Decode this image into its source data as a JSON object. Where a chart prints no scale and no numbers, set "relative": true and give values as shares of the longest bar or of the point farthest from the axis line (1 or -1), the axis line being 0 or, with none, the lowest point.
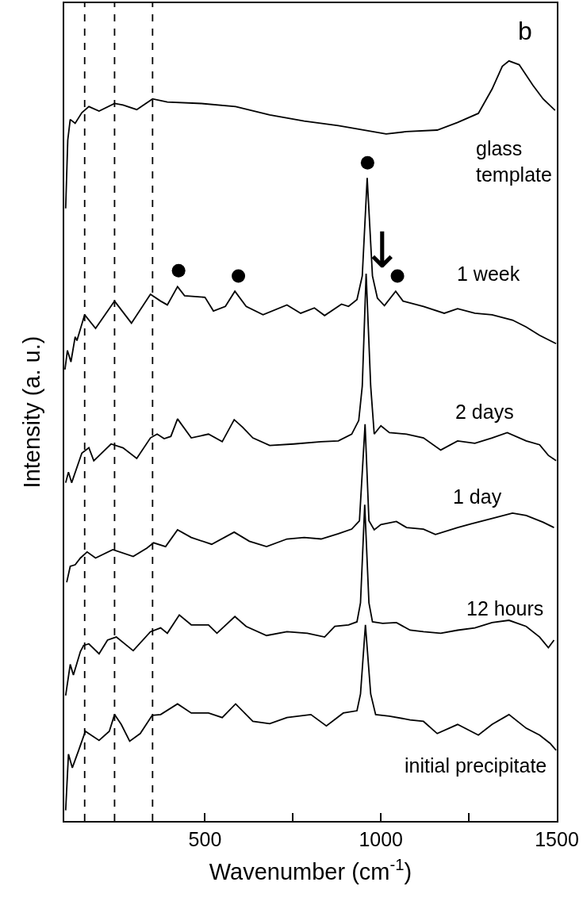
{
  "chart_data": {
    "type": "line",
    "relative": true,
    "xlabel": "Wavenumber (cm$^{-1}$)",
    "ylabel": "Intensity (a. u.)",
    "xlim": [
      100,
      1500
    ],
    "xticks": [
      500,
      {
        "value": 750,
        "label": null
      },
      1000,
      {
        "value": 1250,
        "label": null
      },
      1500
    ],
    "tick_labels": "x",
    "legend": false,
    "line_style": "solid",
    "ref_lines": [
      {
        "axis": "x",
        "value": 158,
        "color": "#000000",
        "line_style": "dashed"
      },
      {
        "axis": "x",
        "value": 243,
        "color": "#000000",
        "line_style": "dashed"
      },
      {
        "axis": "x",
        "value": 351,
        "color": "#000000",
        "line_style": "dashed"
      }
    ],
    "annotations": [
      "b",
      "↓"
    ],
    "series": [
      {
        "name": "glass\ntemplate",
        "color": "#000000",
        "x": [
          104,
          110,
          117,
          131,
          150,
          170,
          199,
          243,
          267,
          306,
          351,
          393,
          490,
          587,
          684,
          782,
          879,
          1015,
          1073,
          1160,
          1218,
          1277,
          1316,
          1345,
          1364,
          1393,
          1432,
          1461,
          1495
        ],
        "values": [
          0.806,
          0.896,
          0.923,
          0.918,
          0.932,
          0.94,
          0.934,
          0.944,
          0.942,
          0.936,
          0.95,
          0.946,
          0.944,
          0.94,
          0.929,
          0.921,
          0.915,
          0.904,
          0.907,
          0.909,
          0.919,
          0.931,
          0.963,
          0.993,
          1.0,
          0.995,
          0.968,
          0.95,
          0.935
        ]
      },
      {
        "name": "1 week",
        "color": "#000000",
        "x": [
          102,
          109,
          119,
          131,
          136,
          158,
          189,
          243,
          291,
          345,
          374,
          393,
          422,
          442,
          500,
          524,
          558,
          585,
          617,
          665,
          733,
          772,
          811,
          840,
          888,
          908,
          932,
          947,
          961,
          976,
          990,
          1010,
          1042,
          1063,
          1121,
          1180,
          1218,
          1267,
          1316,
          1374,
          1413,
          1451,
          1498
        ],
        "values": [
          0.594,
          0.619,
          0.604,
          0.637,
          0.632,
          0.666,
          0.648,
          0.684,
          0.655,
          0.693,
          0.684,
          0.679,
          0.703,
          0.691,
          0.689,
          0.671,
          0.677,
          0.697,
          0.677,
          0.666,
          0.679,
          0.668,
          0.675,
          0.665,
          0.68,
          0.677,
          0.686,
          0.717,
          0.846,
          0.717,
          0.688,
          0.678,
          0.697,
          0.684,
          0.677,
          0.668,
          0.674,
          0.668,
          0.666,
          0.659,
          0.65,
          0.639,
          0.628
        ]
      },
      {
        "name": "2 days",
        "color": "#000000",
        "x": [
          104,
          112,
          121,
          150,
          170,
          184,
          233,
          267,
          306,
          345,
          364,
          384,
          403,
          422,
          461,
          510,
          549,
          583,
          607,
          636,
          684,
          752,
          830,
          879,
          917,
          937,
          947,
          958,
          971,
          981,
          1000,
          1024,
          1073,
          1121,
          1170,
          1218,
          1267,
          1316,
          1359,
          1413,
          1451,
          1476,
          1498
        ],
        "values": [
          0.445,
          0.459,
          0.445,
          0.484,
          0.491,
          0.474,
          0.496,
          0.491,
          0.477,
          0.504,
          0.509,
          0.503,
          0.506,
          0.529,
          0.504,
          0.509,
          0.499,
          0.528,
          0.518,
          0.504,
          0.494,
          0.496,
          0.499,
          0.5,
          0.509,
          0.527,
          0.572,
          0.72,
          0.572,
          0.509,
          0.52,
          0.511,
          0.509,
          0.504,
          0.488,
          0.5,
          0.497,
          0.504,
          0.511,
          0.5,
          0.495,
          0.481,
          0.474
        ]
      },
      {
        "name": "1 day",
        "color": "#000000",
        "x": [
          107,
          117,
          131,
          146,
          165,
          189,
          238,
          296,
          335,
          354,
          388,
          422,
          461,
          519,
          583,
          626,
          675,
          733,
          782,
          830,
          879,
          917,
          939,
          955,
          966,
          981,
          1000,
          1044,
          1073,
          1121,
          1155,
          1218,
          1257,
          1316,
          1374,
          1413,
          1461,
          1492
        ],
        "values": [
          0.314,
          0.335,
          0.337,
          0.346,
          0.354,
          0.346,
          0.357,
          0.348,
          0.359,
          0.366,
          0.361,
          0.383,
          0.373,
          0.364,
          0.38,
          0.368,
          0.361,
          0.371,
          0.373,
          0.371,
          0.378,
          0.384,
          0.395,
          0.522,
          0.395,
          0.383,
          0.39,
          0.394,
          0.386,
          0.384,
          0.377,
          0.386,
          0.391,
          0.398,
          0.405,
          0.402,
          0.393,
          0.386
        ]
      },
      {
        "name": "12 hours",
        "color": "#000000",
        "x": [
          104,
          117,
          126,
          146,
          155,
          170,
          199,
          223,
          248,
          296,
          345,
          374,
          393,
          427,
          461,
          510,
          534,
          585,
          617,
          675,
          733,
          791,
          840,
          869,
          908,
          932,
          942,
          954,
          966,
          976,
          1005,
          1044,
          1083,
          1121,
          1170,
          1218,
          1267,
          1316,
          1364,
          1413,
          1451,
          1476,
          1492
        ],
        "values": [
          0.165,
          0.206,
          0.192,
          0.223,
          0.231,
          0.233,
          0.22,
          0.238,
          0.242,
          0.224,
          0.249,
          0.254,
          0.247,
          0.271,
          0.258,
          0.258,
          0.247,
          0.269,
          0.256,
          0.244,
          0.249,
          0.247,
          0.242,
          0.256,
          0.258,
          0.262,
          0.287,
          0.416,
          0.287,
          0.262,
          0.26,
          0.261,
          0.251,
          0.249,
          0.247,
          0.251,
          0.254,
          0.261,
          0.264,
          0.256,
          0.242,
          0.228,
          0.238
        ]
      },
      {
        "name": "initial precipitate",
        "color": "#000000",
        "x": [
          104,
          112,
          123,
          141,
          160,
          199,
          228,
          243,
          262,
          286,
          316,
          350,
          374,
          422,
          461,
          510,
          549,
          587,
          636,
          684,
          733,
          801,
          845,
          893,
          932,
          942,
          956,
          971,
          985,
          1024,
          1083,
          1121,
          1160,
          1218,
          1277,
          1316,
          1364,
          1413,
          1451,
          1481,
          1498
        ],
        "values": [
          0.014,
          0.088,
          0.07,
          0.093,
          0.118,
          0.106,
          0.118,
          0.14,
          0.127,
          0.105,
          0.115,
          0.139,
          0.14,
          0.154,
          0.142,
          0.142,
          0.136,
          0.154,
          0.131,
          0.128,
          0.136,
          0.14,
          0.125,
          0.142,
          0.145,
          0.167,
          0.258,
          0.167,
          0.14,
          0.138,
          0.133,
          0.131,
          0.115,
          0.127,
          0.113,
          0.127,
          0.14,
          0.122,
          0.113,
          0.102,
          0.093
        ]
      },
      {
        "type": "scatter",
        "marker": "circle",
        "color": "#000000",
        "x": [
          425,
          595,
          962,
          1047
        ],
        "values": [
          0.724,
          0.717,
          0.866,
          0.717
        ]
      }
    ]
  }
}
